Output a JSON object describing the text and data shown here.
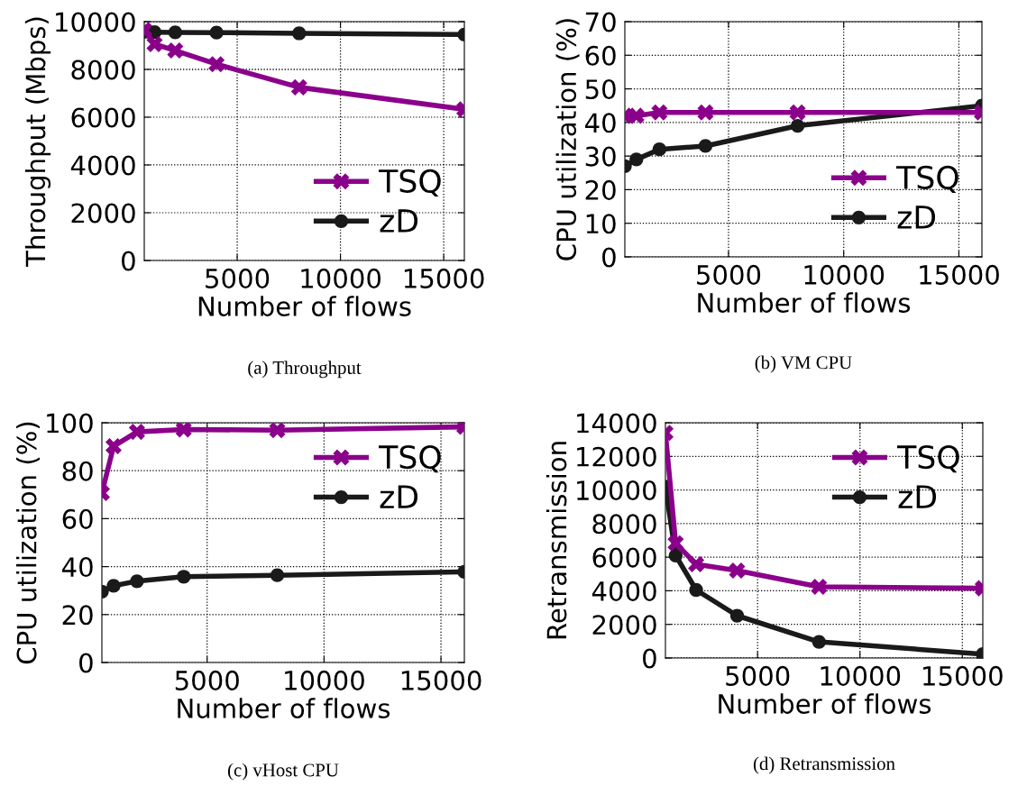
{
  "chart_data": [
    {
      "type": "line",
      "title": "(a) Throughput",
      "xlabel": "Number of flows",
      "ylabel": "Throughput (Mbps)",
      "xlim": [
        500,
        16000
      ],
      "xticks": [
        5000,
        10000,
        15000
      ],
      "ylim": [
        0,
        10000
      ],
      "yticks": [
        0,
        2000,
        4000,
        6000,
        8000,
        10000
      ],
      "grid": true,
      "legend": "bottom right",
      "line_style": "solid",
      "x": [
        500,
        1000,
        2000,
        4000,
        8000,
        16000
      ],
      "series": [
        {
          "name": "TSQ",
          "color": "#8b008b",
          "marker": "cross",
          "values": [
            9650,
            9060,
            8790,
            8220,
            7250,
            6330
          ]
        },
        {
          "name": "zD",
          "color": "#1a1a1a",
          "marker": "circle",
          "values": [
            9570,
            9560,
            9550,
            9540,
            9510,
            9460
          ]
        }
      ]
    },
    {
      "type": "line",
      "title": "(b) VM CPU",
      "xlabel": "Number of flows",
      "ylabel": "CPU utilization (%)",
      "xlim": [
        500,
        16000
      ],
      "xticks": [
        5000,
        10000,
        15000
      ],
      "ylim": [
        0,
        70
      ],
      "yticks": [
        0,
        10,
        20,
        30,
        40,
        50,
        60,
        70
      ],
      "grid": true,
      "legend": "bottom right",
      "line_style": "solid",
      "x": [
        500,
        1000,
        2000,
        4000,
        8000,
        16000
      ],
      "series": [
        {
          "name": "TSQ",
          "color": "#8b008b",
          "marker": "cross",
          "values": [
            42,
            42,
            43,
            43,
            43,
            43
          ]
        },
        {
          "name": "zD",
          "color": "#1a1a1a",
          "marker": "circle",
          "values": [
            27,
            29,
            32,
            33,
            39,
            45
          ]
        }
      ]
    },
    {
      "type": "line",
      "title": "(c) vHost CPU",
      "xlabel": "Number of flows",
      "ylabel": "CPU utilization (%)",
      "xlim": [
        500,
        16000
      ],
      "xticks": [
        5000,
        10000,
        15000
      ],
      "ylim": [
        0,
        100
      ],
      "yticks": [
        0,
        20,
        40,
        60,
        80,
        100
      ],
      "grid": true,
      "legend": "top right",
      "line_style": "solid",
      "x": [
        500,
        1000,
        2000,
        4000,
        8000,
        16000
      ],
      "series": [
        {
          "name": "TSQ",
          "color": "#8b008b",
          "marker": "cross",
          "values": [
            70.7,
            90.2,
            96.2,
            97.2,
            96.9,
            98.3
          ]
        },
        {
          "name": "zD",
          "color": "#1a1a1a",
          "marker": "circle",
          "values": [
            29.6,
            32,
            33.9,
            35.8,
            36.4,
            37.8
          ]
        }
      ]
    },
    {
      "type": "line",
      "title": "(d) Retransmission",
      "xlabel": "Number of flows",
      "ylabel": "Retransmission",
      "xlim": [
        500,
        16000
      ],
      "xticks": [
        5000,
        10000,
        15000
      ],
      "ylim": [
        0,
        14000
      ],
      "yticks": [
        0,
        2000,
        4000,
        6000,
        8000,
        10000,
        12000,
        14000
      ],
      "grid": true,
      "legend": "top right",
      "line_style": "solid",
      "x": [
        500,
        1000,
        2000,
        4000,
        8000,
        16000
      ],
      "series": [
        {
          "name": "TSQ",
          "color": "#8b008b",
          "marker": "cross",
          "values": [
            13400,
            6830,
            5580,
            5200,
            4240,
            4150
          ]
        },
        {
          "name": "zD",
          "color": "#1a1a1a",
          "marker": "circle",
          "values": [
            10200,
            6100,
            4050,
            2520,
            960,
            230
          ]
        }
      ]
    }
  ]
}
